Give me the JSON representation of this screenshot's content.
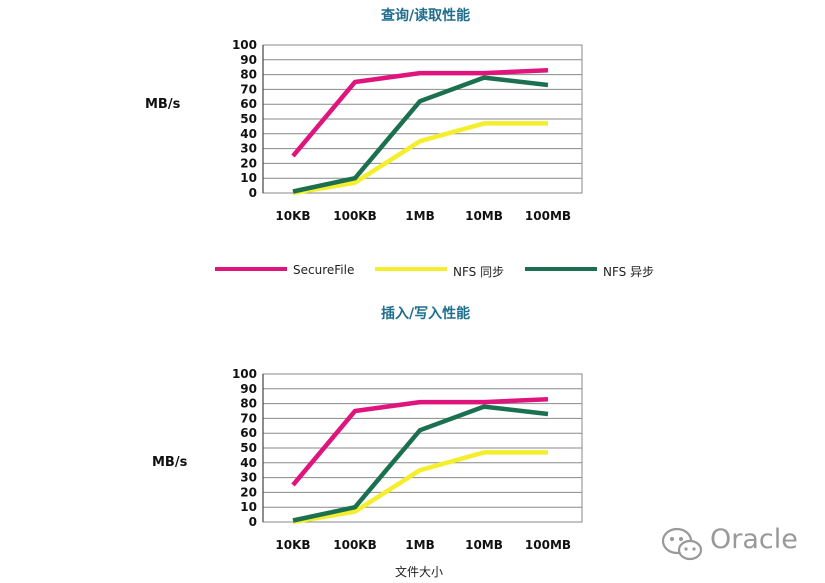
{
  "charts": [
    {
      "title": "查询/读取性能",
      "ylabel": "MB/s",
      "xlabel": ""
    },
    {
      "title": "插入/写入性能",
      "ylabel": "MB/s",
      "xlabel": "文件大小"
    }
  ],
  "legend": [
    {
      "label": "SecureFile",
      "color": "#e0147d"
    },
    {
      "label": "NFS  同步",
      "color": "#f5ee2c"
    },
    {
      "label": "NFS  异步",
      "color": "#1b7050"
    }
  ],
  "watermark": {
    "text": "Oracle",
    "icon": "wechat-icon"
  },
  "chart_data": [
    {
      "type": "line",
      "title": "查询/读取性能",
      "ylabel": "MB/s",
      "xlabel": "",
      "categories": [
        "10KB",
        "100KB",
        "1MB",
        "10MB",
        "100MB"
      ],
      "ylim": [
        0,
        100
      ],
      "yticks": [
        0,
        10,
        20,
        30,
        40,
        50,
        60,
        70,
        80,
        90,
        100
      ],
      "grid": true,
      "legend_position": "bottom",
      "series": [
        {
          "name": "SecureFile",
          "color": "#e0147d",
          "values": [
            25,
            75,
            81,
            81,
            83
          ]
        },
        {
          "name": "NFS  同步",
          "color": "#f5ee2c",
          "values": [
            0,
            7,
            35,
            47,
            47
          ]
        },
        {
          "name": "NFS  异步",
          "color": "#1b7050",
          "values": [
            1,
            10,
            62,
            78,
            73
          ]
        }
      ]
    },
    {
      "type": "line",
      "title": "插入/写入性能",
      "ylabel": "MB/s",
      "xlabel": "文件大小",
      "categories": [
        "10KB",
        "100KB",
        "1MB",
        "10MB",
        "100MB"
      ],
      "ylim": [
        0,
        100
      ],
      "yticks": [
        0,
        10,
        20,
        30,
        40,
        50,
        60,
        70,
        80,
        90,
        100
      ],
      "grid": true,
      "legend_position": "none",
      "series": [
        {
          "name": "SecureFile",
          "color": "#e0147d",
          "values": [
            25,
            75,
            81,
            81,
            83
          ]
        },
        {
          "name": "NFS  同步",
          "color": "#f5ee2c",
          "values": [
            0,
            7,
            35,
            47,
            47
          ]
        },
        {
          "name": "NFS  异步",
          "color": "#1b7050",
          "values": [
            1,
            10,
            62,
            78,
            73
          ]
        }
      ]
    }
  ]
}
